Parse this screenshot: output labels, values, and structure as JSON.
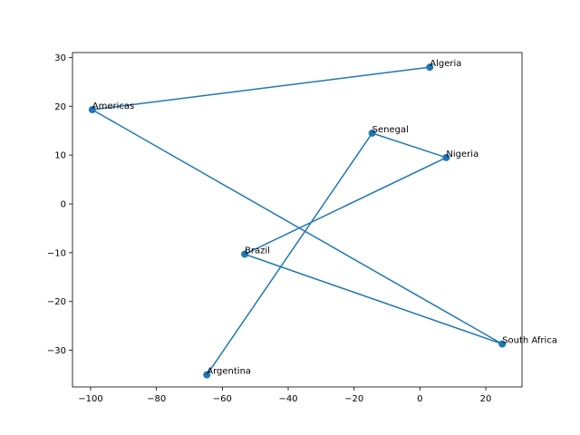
{
  "chart_data": {
    "type": "line",
    "title": "",
    "xlabel": "",
    "ylabel": "",
    "xlim": [
      -105.5,
      31
    ],
    "ylim": [
      -37.5,
      31
    ],
    "xticks": [
      -100,
      -80,
      -60,
      -40,
      -20,
      0,
      20
    ],
    "yticks": [
      -30,
      -20,
      -10,
      0,
      10,
      20,
      30
    ],
    "grid": false,
    "legend": "none",
    "color": "#1f77b4",
    "points": [
      {
        "label": "Algeria",
        "x": 3,
        "y": 28
      },
      {
        "label": "Americas",
        "x": -99.5,
        "y": 19.3
      },
      {
        "label": "South Africa",
        "x": 25,
        "y": -28.7
      },
      {
        "label": "Brazil",
        "x": -53.2,
        "y": -10.3
      },
      {
        "label": "Nigeria",
        "x": 8,
        "y": 9.5
      },
      {
        "label": "Senegal",
        "x": -14.5,
        "y": 14.5
      },
      {
        "label": "Argentina",
        "x": -64.7,
        "y": -35
      }
    ]
  }
}
